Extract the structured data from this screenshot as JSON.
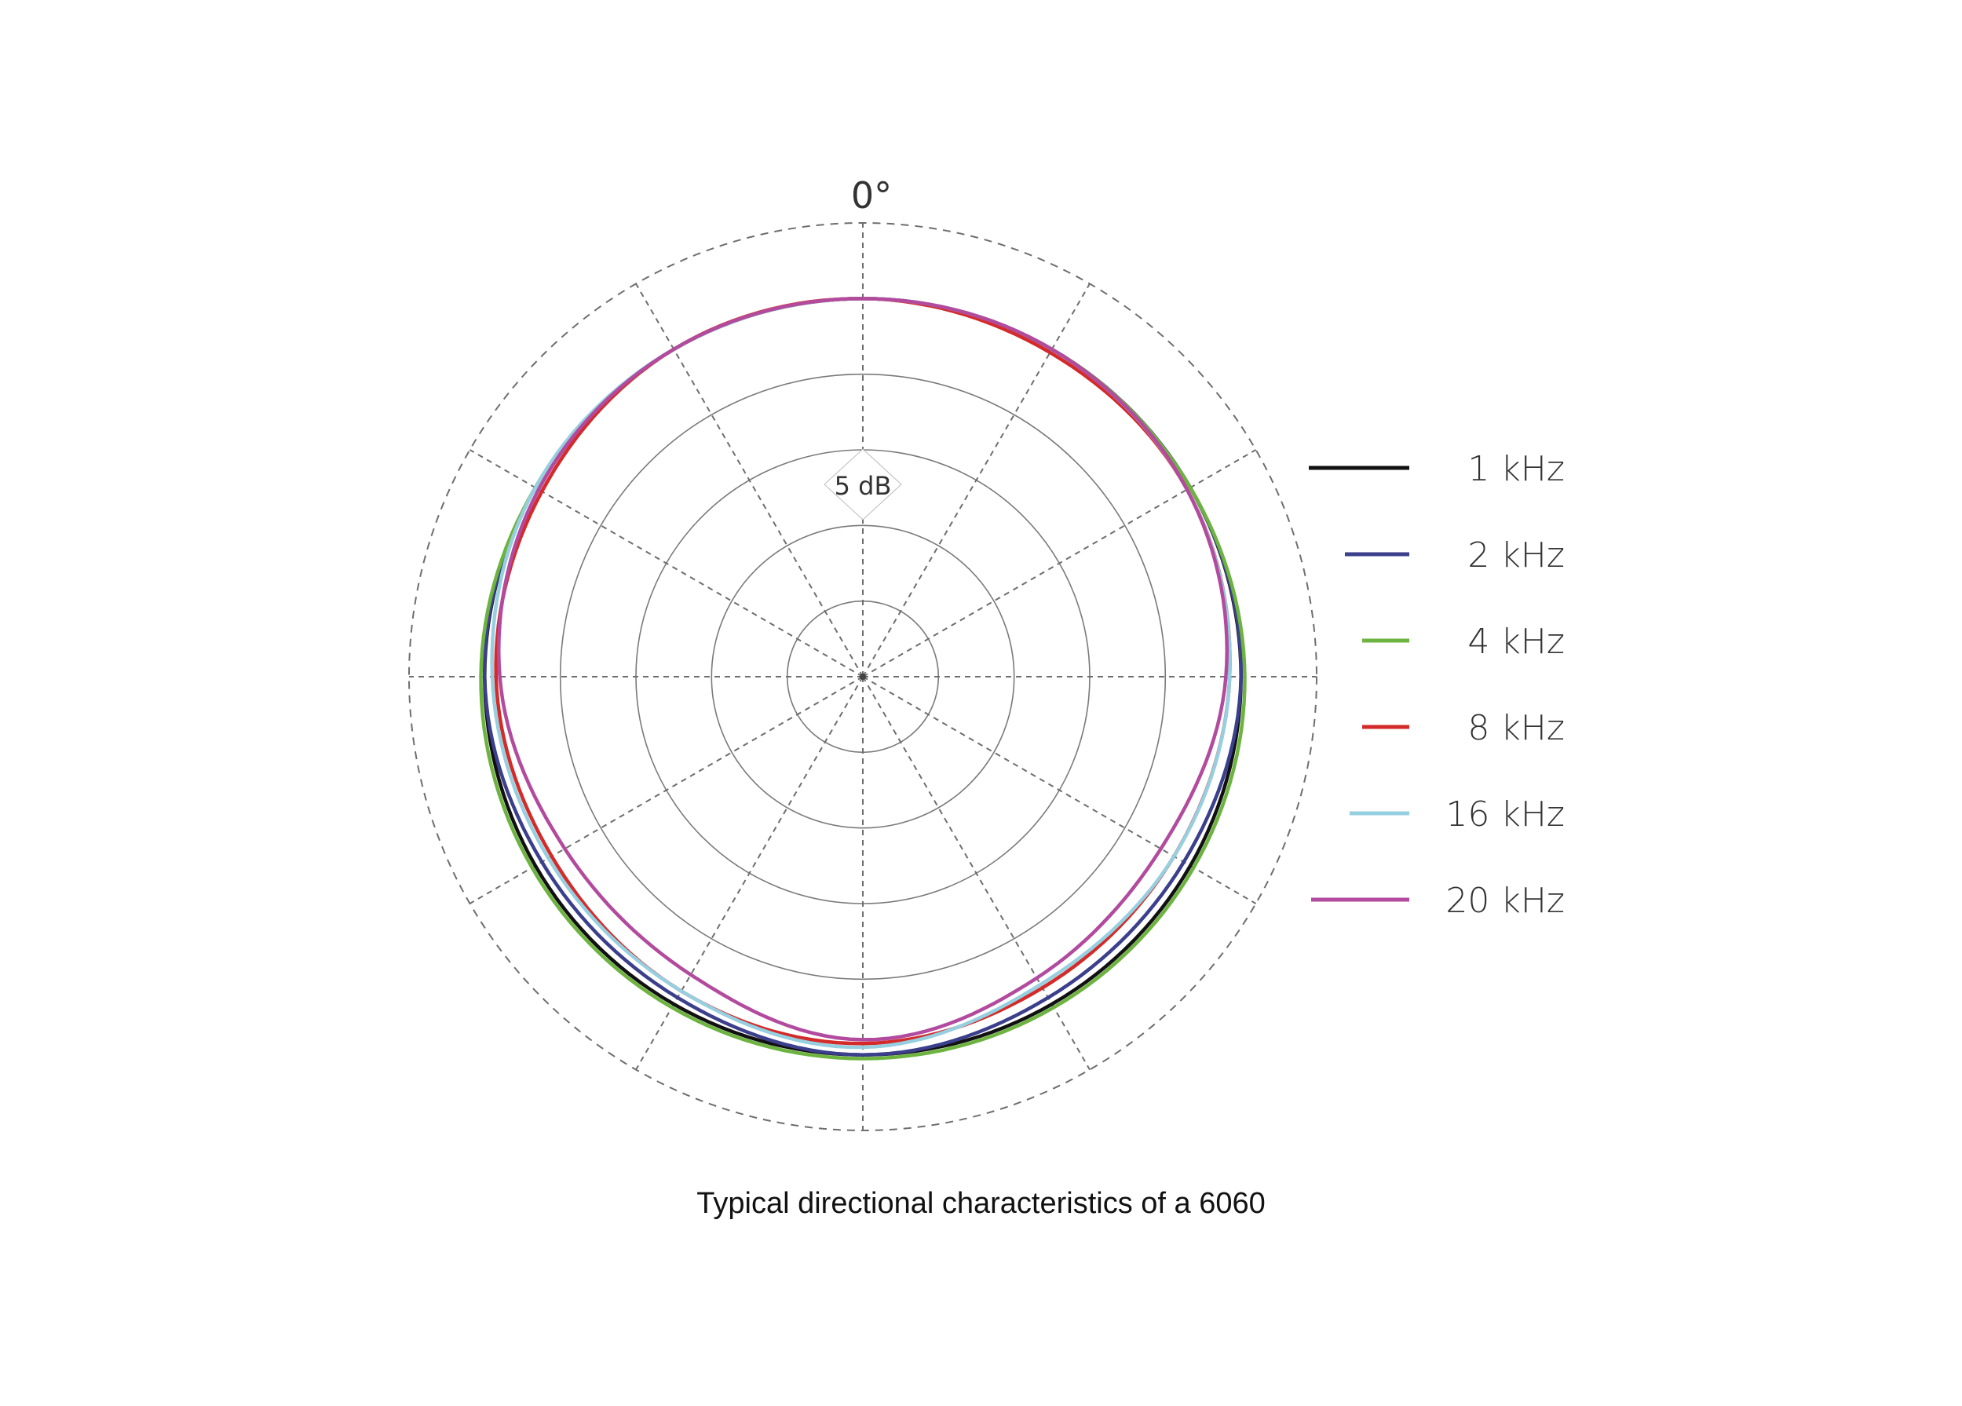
{
  "chart_data": {
    "type": "polar",
    "title": "",
    "caption": "Typical directional characteristics of a 6060",
    "angle_label": "0°",
    "ring_label": "5 dB",
    "rings": 6,
    "angles_deg": [
      0,
      30,
      60,
      90,
      120,
      150,
      180,
      210,
      240,
      270,
      300,
      330
    ],
    "series": [
      {
        "name": "1 kHz",
        "color": "#111111",
        "r": [
          5.0,
          5.0,
          5.0,
          5.0,
          5.0,
          5.0,
          5.0,
          5.0,
          5.0,
          5.0,
          5.0,
          5.0
        ]
      },
      {
        "name": "2 kHz",
        "color": "#3b3f8c",
        "r": [
          5.0,
          5.0,
          5.0,
          5.0,
          4.9,
          4.9,
          5.0,
          4.9,
          4.9,
          5.0,
          5.0,
          5.0
        ]
      },
      {
        "name": "4 kHz",
        "color": "#6db33f",
        "r": [
          5.0,
          5.0,
          5.0,
          5.05,
          5.05,
          5.05,
          5.05,
          5.05,
          5.05,
          5.05,
          5.0,
          5.0
        ]
      },
      {
        "name": "8 kHz",
        "color": "#d42a2a",
        "r": [
          5.0,
          4.95,
          4.95,
          4.85,
          4.75,
          4.75,
          4.85,
          4.8,
          4.75,
          4.85,
          4.9,
          5.0
        ]
      },
      {
        "name": "16 kHz",
        "color": "#96cfdf",
        "r": [
          5.0,
          5.0,
          4.95,
          4.85,
          4.75,
          4.7,
          4.9,
          4.8,
          4.8,
          4.9,
          5.0,
          5.0
        ]
      },
      {
        "name": "20 kHz",
        "color": "#b24a9e",
        "r": [
          5.0,
          5.0,
          4.95,
          4.8,
          4.55,
          4.6,
          4.8,
          4.55,
          4.55,
          4.8,
          4.95,
          5.0
        ]
      }
    ]
  }
}
